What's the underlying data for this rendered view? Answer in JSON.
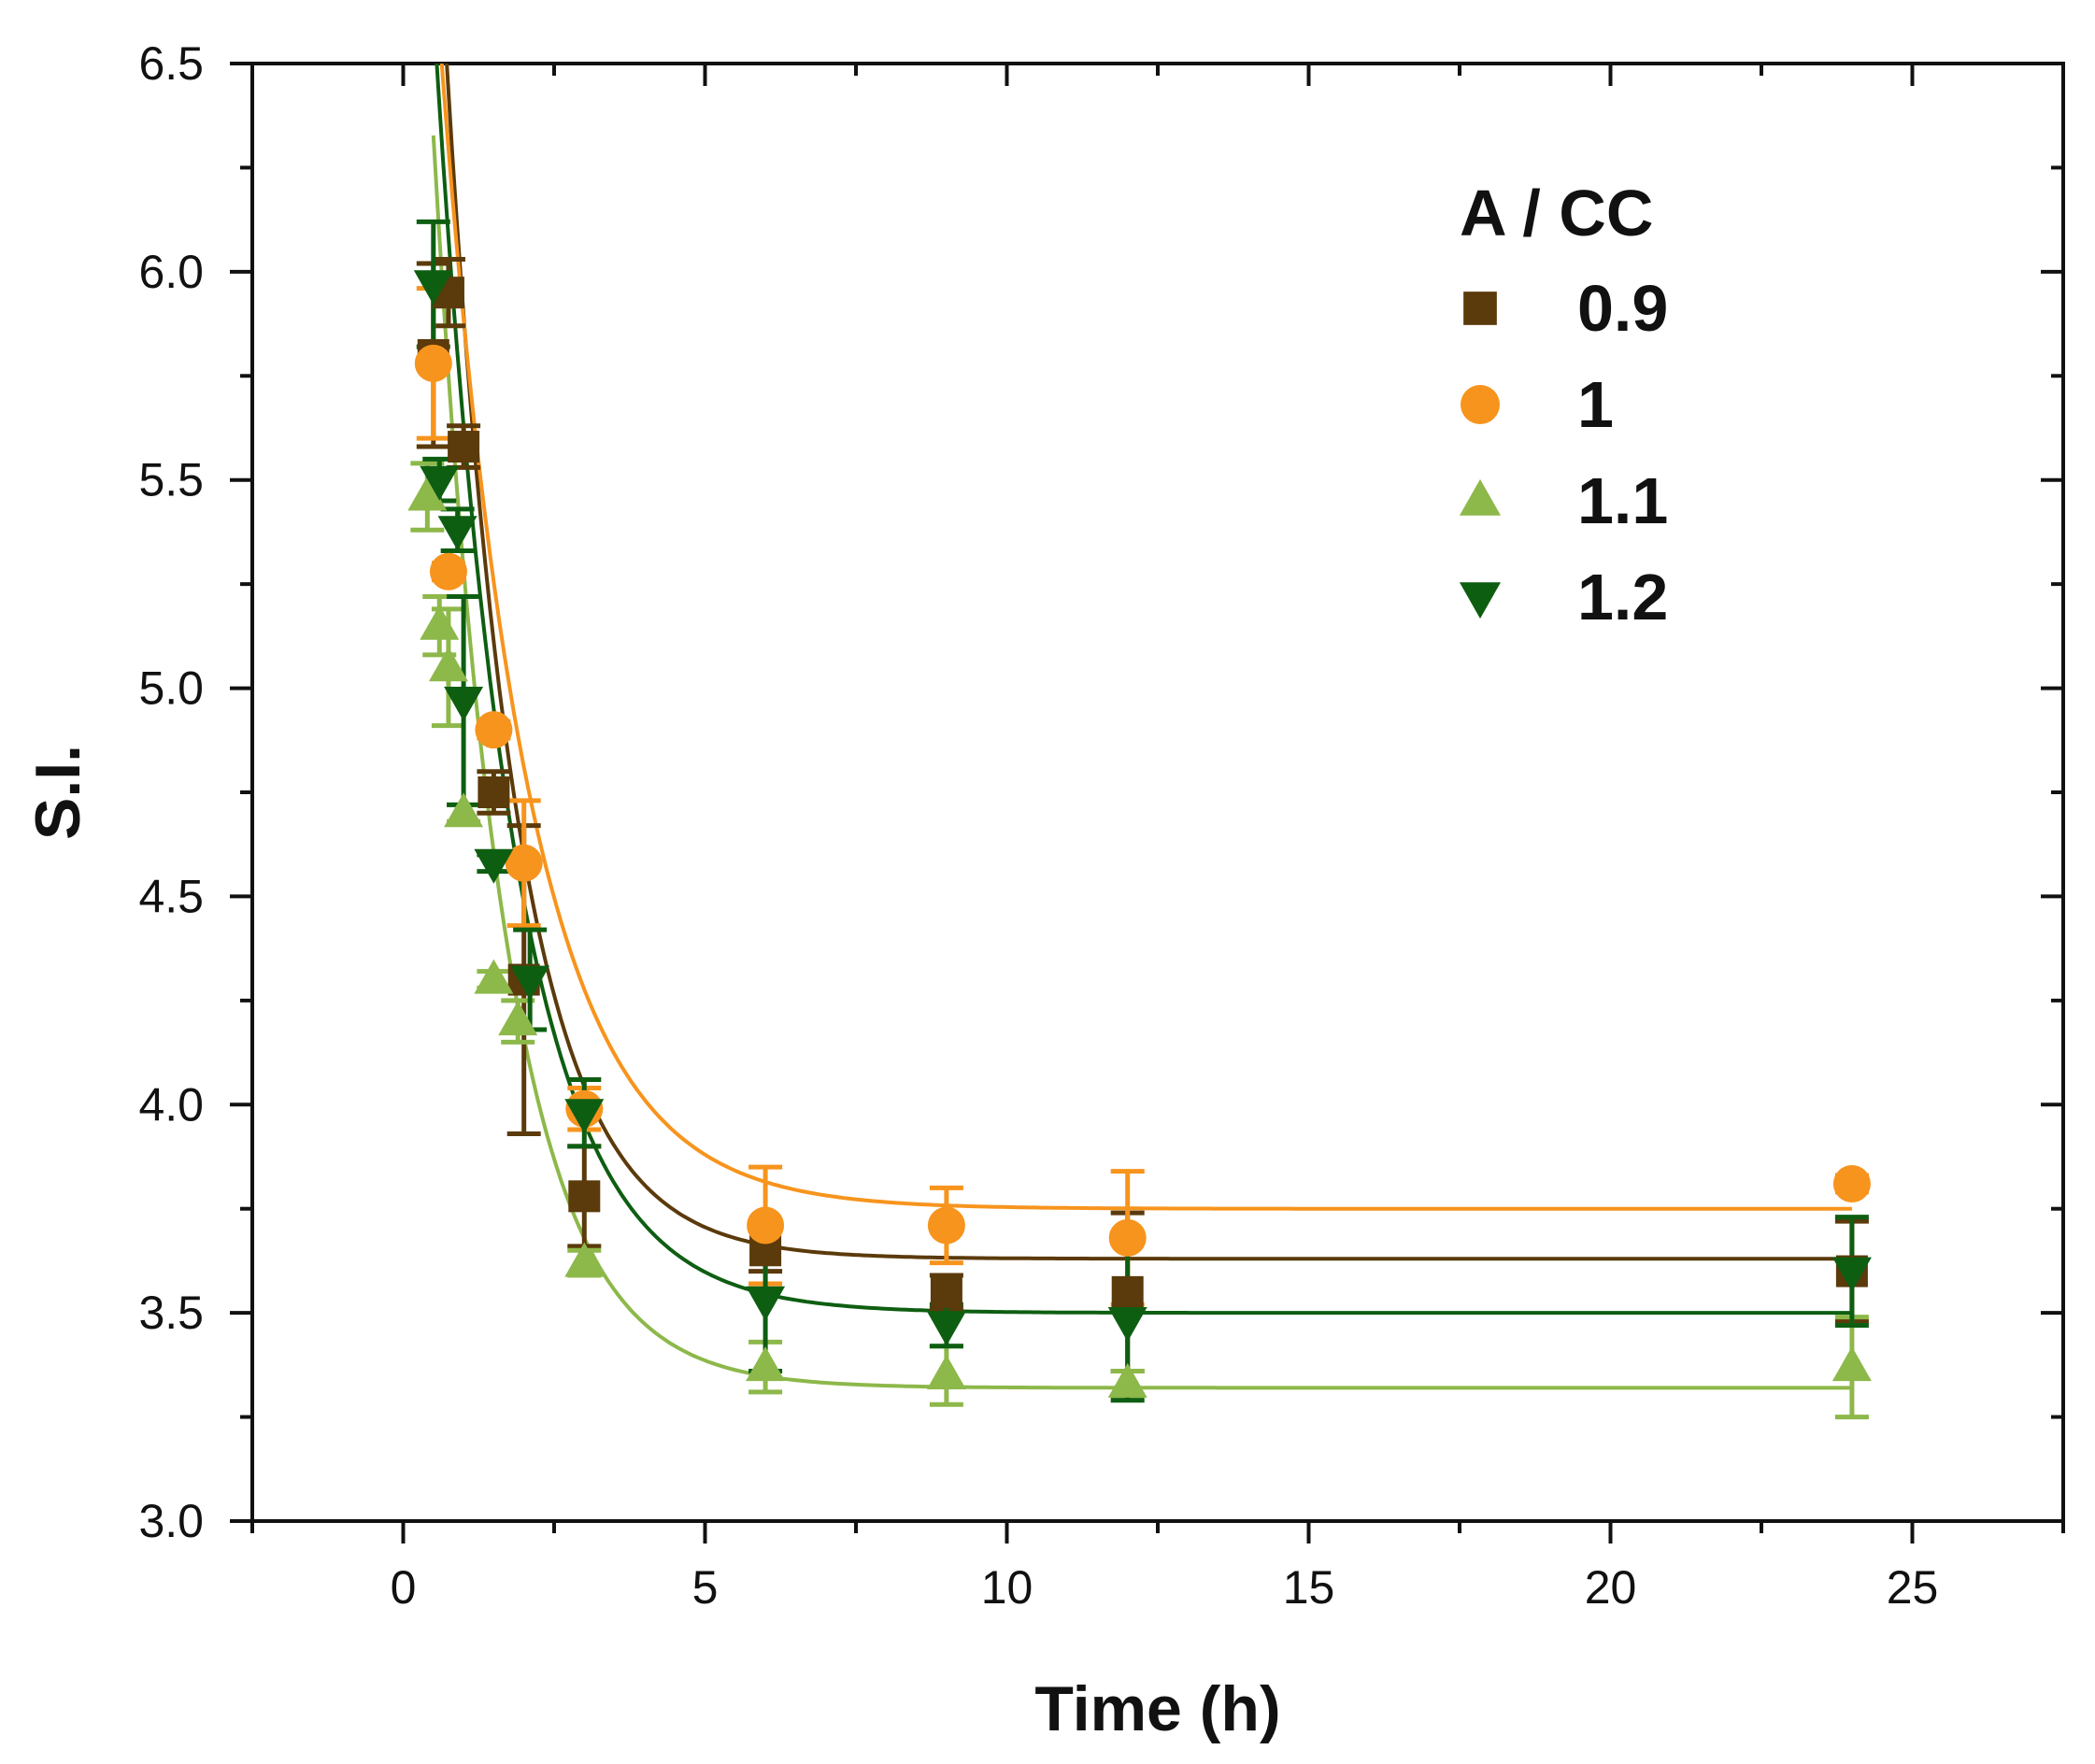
{
  "chart_data": {
    "type": "scatter",
    "title": "",
    "xlabel": "Time (h)",
    "ylabel": "S.I.",
    "xlim": [
      -2.5,
      27.5
    ],
    "ylim": [
      3.0,
      6.5
    ],
    "xticks": [
      0,
      5,
      10,
      15,
      20,
      25
    ],
    "xtick_labels": [
      "0",
      "5",
      "10",
      "15",
      "20",
      "25"
    ],
    "yticks": [
      3.0,
      3.5,
      4.0,
      4.5,
      5.0,
      5.5,
      6.0,
      6.5
    ],
    "ytick_labels": [
      "3.0",
      "3.5",
      "4.0",
      "4.5",
      "5.0",
      "5.5",
      "6.0",
      "6.5"
    ],
    "legend_title": "A / CC",
    "legend_position": "top-right",
    "series": [
      {
        "name": "0.9",
        "marker": "square",
        "color": "#5B3A0B",
        "points": [
          {
            "x": 0.5,
            "y": 5.8,
            "err": 0.22
          },
          {
            "x": 0.75,
            "y": 5.95,
            "err": 0.08
          },
          {
            "x": 1.0,
            "y": 5.58,
            "err": 0.05
          },
          {
            "x": 1.5,
            "y": 4.75,
            "err": 0.05
          },
          {
            "x": 2.0,
            "y": 4.3,
            "err": 0.37
          },
          {
            "x": 3.0,
            "y": 3.78,
            "err": 0.12
          },
          {
            "x": 6.0,
            "y": 3.65,
            "err": 0.05
          },
          {
            "x": 9.0,
            "y": 3.55,
            "err": 0.04
          },
          {
            "x": 12.0,
            "y": 3.55,
            "err": 0.19
          },
          {
            "x": 24.0,
            "y": 3.6,
            "err": 0.12
          }
        ],
        "fit": {
          "a": 5.3,
          "k": 0.85,
          "c": 3.63
        }
      },
      {
        "name": "1",
        "marker": "circle",
        "color": "#F7941D",
        "points": [
          {
            "x": 0.5,
            "y": 5.78,
            "err": 0.18
          },
          {
            "x": 0.75,
            "y": 5.28,
            "err": 0.02
          },
          {
            "x": 1.5,
            "y": 4.9,
            "err": 0.02
          },
          {
            "x": 2.0,
            "y": 4.58,
            "err": 0.15
          },
          {
            "x": 3.0,
            "y": 3.99,
            "err": 0.05
          },
          {
            "x": 6.0,
            "y": 3.71,
            "err": 0.14
          },
          {
            "x": 9.0,
            "y": 3.71,
            "err": 0.09
          },
          {
            "x": 12.0,
            "y": 3.68,
            "err": 0.16
          },
          {
            "x": 24.0,
            "y": 3.81,
            "err": 0.02
          }
        ],
        "fit": {
          "a": 4.3,
          "k": 0.7,
          "c": 3.75
        }
      },
      {
        "name": "1.1",
        "marker": "triangle-up",
        "color": "#8DB84A",
        "points": [
          {
            "x": 0.4,
            "y": 5.46,
            "err": 0.08
          },
          {
            "x": 0.6,
            "y": 5.15,
            "err": 0.07
          },
          {
            "x": 0.75,
            "y": 5.05,
            "err": 0.14
          },
          {
            "x": 1.0,
            "y": 4.7,
            "err": 0.02
          },
          {
            "x": 1.5,
            "y": 4.3,
            "err": 0.02
          },
          {
            "x": 1.9,
            "y": 4.2,
            "err": 0.05
          },
          {
            "x": 3.0,
            "y": 3.62,
            "err": 0.03
          },
          {
            "x": 6.0,
            "y": 3.37,
            "err": 0.06
          },
          {
            "x": 9.0,
            "y": 3.35,
            "err": 0.07
          },
          {
            "x": 12.0,
            "y": 3.33,
            "err": 0.03
          },
          {
            "x": 24.0,
            "y": 3.37,
            "err": 0.12
          }
        ],
        "fit": {
          "a": 4.6,
          "k": 0.85,
          "c": 3.32
        }
      },
      {
        "name": "1.2",
        "marker": "triangle-down",
        "color": "#0E5E12",
        "points": [
          {
            "x": 0.5,
            "y": 5.97,
            "err": 0.15
          },
          {
            "x": 0.6,
            "y": 5.5,
            "err": 0.05
          },
          {
            "x": 0.9,
            "y": 5.38,
            "err": 0.05
          },
          {
            "x": 1.0,
            "y": 4.97,
            "err": 0.25
          },
          {
            "x": 1.5,
            "y": 4.58,
            "err": 0.02
          },
          {
            "x": 2.1,
            "y": 4.3,
            "err": 0.12
          },
          {
            "x": 3.0,
            "y": 3.98,
            "err": 0.08
          },
          {
            "x": 6.0,
            "y": 3.53,
            "err": 0.17
          },
          {
            "x": 9.0,
            "y": 3.47,
            "err": 0.05
          },
          {
            "x": 12.0,
            "y": 3.48,
            "err": 0.19
          },
          {
            "x": 24.0,
            "y": 3.6,
            "err": 0.13
          }
        ],
        "fit": {
          "a": 4.6,
          "k": 0.77,
          "c": 3.5
        }
      }
    ]
  }
}
